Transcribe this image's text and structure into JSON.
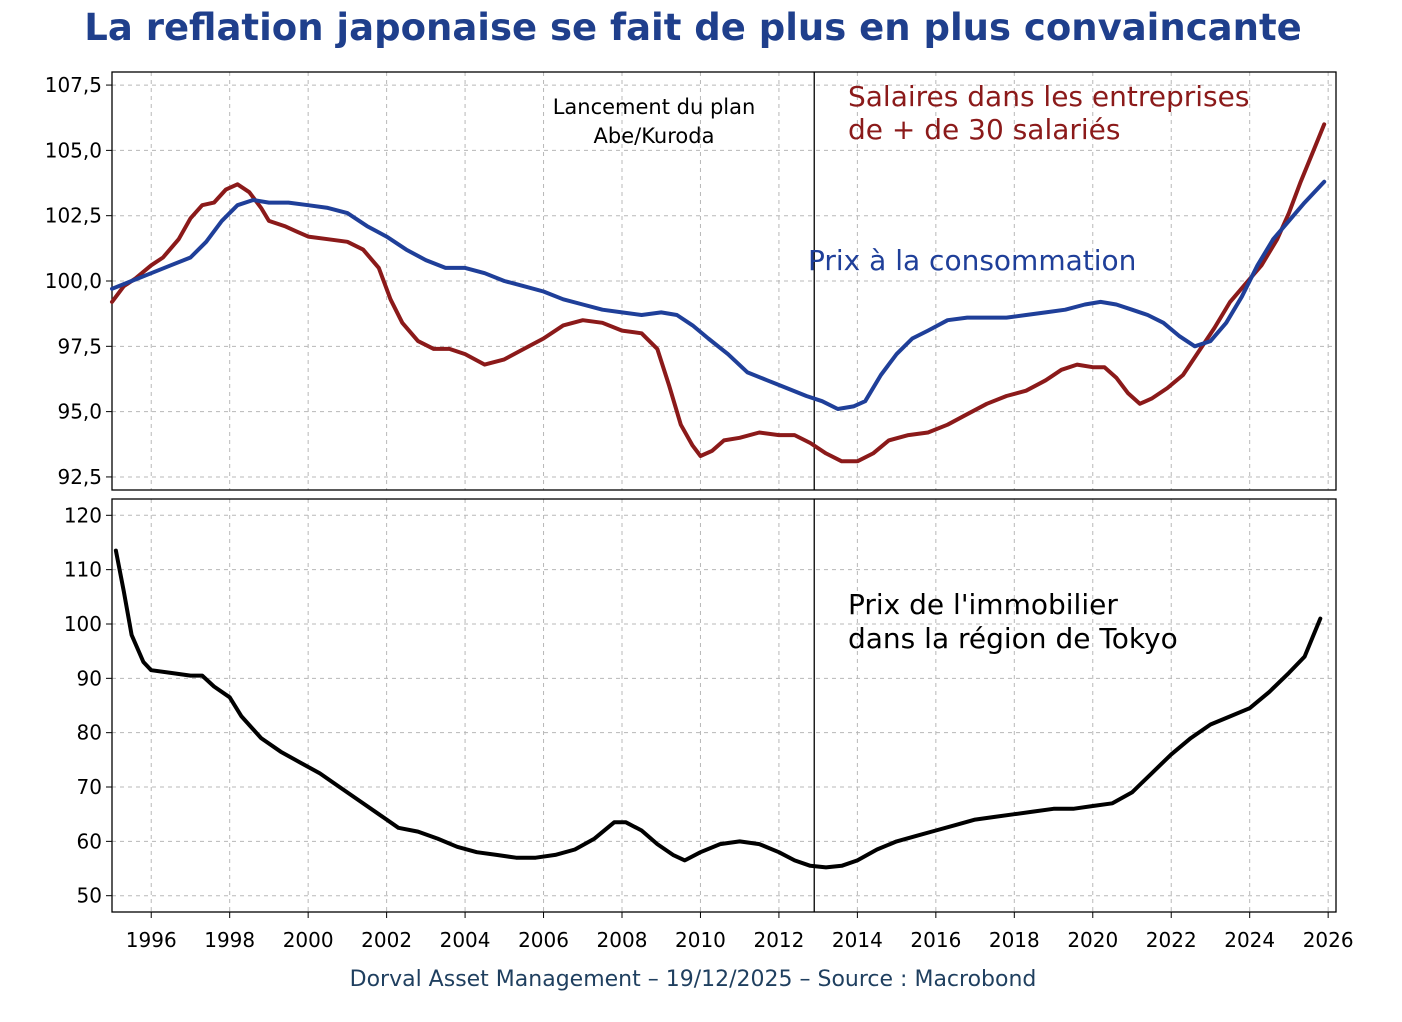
{
  "title": "La reflation japonaise se fait de plus en plus convaincante",
  "footer": "Dorval Asset Management – 19/12/2025  –   Source : Macrobond",
  "colors": {
    "title": "#1f3f8c",
    "wages": "#8b1a1a",
    "cpi": "#1f3f99",
    "housing": "#000000"
  },
  "chart_data": [
    {
      "type": "line",
      "panel": "top",
      "ylim": [
        92,
        108
      ],
      "xlim": [
        1995.0,
        2026.2
      ],
      "grid": true,
      "yticks": [
        92.5,
        95.0,
        97.5,
        100.0,
        102.5,
        105.0,
        107.5
      ],
      "ytick_labels": [
        "92,5",
        "95,0",
        "97,5",
        "100,0",
        "102,5",
        "105,0",
        "107,5"
      ],
      "annotations": [
        {
          "text_lines": [
            "Lancement du plan",
            "Abe/Kuroda"
          ],
          "x": 2012.9
        }
      ],
      "vline_x": 2012.9,
      "series": [
        {
          "name": "Salaires dans les entreprises de + de 30 salariés",
          "label_lines": [
            "Salaires dans les entreprises",
            "de + de 30 salariés"
          ],
          "color": "#8b1a1a",
          "points": [
            [
              1995.0,
              99.2
            ],
            [
              1995.3,
              99.8
            ],
            [
              1995.6,
              100.1
            ],
            [
              1996.0,
              100.6
            ],
            [
              1996.3,
              100.9
            ],
            [
              1996.7,
              101.6
            ],
            [
              1997.0,
              102.4
            ],
            [
              1997.3,
              102.9
            ],
            [
              1997.6,
              103.0
            ],
            [
              1997.9,
              103.5
            ],
            [
              1998.2,
              103.7
            ],
            [
              1998.5,
              103.4
            ],
            [
              1998.8,
              102.8
            ],
            [
              1999.0,
              102.3
            ],
            [
              1999.4,
              102.1
            ],
            [
              1999.7,
              101.9
            ],
            [
              2000.0,
              101.7
            ],
            [
              2000.5,
              101.6
            ],
            [
              2001.0,
              101.5
            ],
            [
              2001.4,
              101.2
            ],
            [
              2001.8,
              100.5
            ],
            [
              2002.1,
              99.3
            ],
            [
              2002.4,
              98.4
            ],
            [
              2002.8,
              97.7
            ],
            [
              2003.2,
              97.4
            ],
            [
              2003.6,
              97.4
            ],
            [
              2004.0,
              97.2
            ],
            [
              2004.5,
              96.8
            ],
            [
              2005.0,
              97.0
            ],
            [
              2005.5,
              97.4
            ],
            [
              2006.0,
              97.8
            ],
            [
              2006.5,
              98.3
            ],
            [
              2007.0,
              98.5
            ],
            [
              2007.5,
              98.4
            ],
            [
              2008.0,
              98.1
            ],
            [
              2008.5,
              98.0
            ],
            [
              2008.9,
              97.4
            ],
            [
              2009.2,
              96.0
            ],
            [
              2009.5,
              94.5
            ],
            [
              2009.8,
              93.7
            ],
            [
              2010.0,
              93.3
            ],
            [
              2010.3,
              93.5
            ],
            [
              2010.6,
              93.9
            ],
            [
              2011.0,
              94.0
            ],
            [
              2011.5,
              94.2
            ],
            [
              2012.0,
              94.1
            ],
            [
              2012.4,
              94.1
            ],
            [
              2012.8,
              93.8
            ],
            [
              2013.2,
              93.4
            ],
            [
              2013.6,
              93.1
            ],
            [
              2014.0,
              93.1
            ],
            [
              2014.4,
              93.4
            ],
            [
              2014.8,
              93.9
            ],
            [
              2015.3,
              94.1
            ],
            [
              2015.8,
              94.2
            ],
            [
              2016.3,
              94.5
            ],
            [
              2016.8,
              94.9
            ],
            [
              2017.3,
              95.3
            ],
            [
              2017.8,
              95.6
            ],
            [
              2018.3,
              95.8
            ],
            [
              2018.8,
              96.2
            ],
            [
              2019.2,
              96.6
            ],
            [
              2019.6,
              96.8
            ],
            [
              2020.0,
              96.7
            ],
            [
              2020.3,
              96.7
            ],
            [
              2020.6,
              96.3
            ],
            [
              2020.9,
              95.7
            ],
            [
              2021.2,
              95.3
            ],
            [
              2021.5,
              95.5
            ],
            [
              2021.9,
              95.9
            ],
            [
              2022.3,
              96.4
            ],
            [
              2022.7,
              97.3
            ],
            [
              2023.1,
              98.2
            ],
            [
              2023.5,
              99.2
            ],
            [
              2023.9,
              99.9
            ],
            [
              2024.3,
              100.6
            ],
            [
              2024.7,
              101.6
            ],
            [
              2025.0,
              102.6
            ],
            [
              2025.3,
              103.8
            ],
            [
              2025.6,
              104.9
            ],
            [
              2025.9,
              106.0
            ]
          ]
        },
        {
          "name": "Prix à la consommation",
          "label_lines": [
            "Prix à la consommation"
          ],
          "color": "#1f3f99",
          "points": [
            [
              1995.0,
              99.7
            ],
            [
              1995.5,
              100.0
            ],
            [
              1996.0,
              100.3
            ],
            [
              1996.5,
              100.6
            ],
            [
              1997.0,
              100.9
            ],
            [
              1997.4,
              101.5
            ],
            [
              1997.8,
              102.3
            ],
            [
              1998.2,
              102.9
            ],
            [
              1998.6,
              103.1
            ],
            [
              1999.0,
              103.0
            ],
            [
              1999.5,
              103.0
            ],
            [
              2000.0,
              102.9
            ],
            [
              2000.5,
              102.8
            ],
            [
              2001.0,
              102.6
            ],
            [
              2001.5,
              102.1
            ],
            [
              2002.0,
              101.7
            ],
            [
              2002.5,
              101.2
            ],
            [
              2003.0,
              100.8
            ],
            [
              2003.5,
              100.5
            ],
            [
              2004.0,
              100.5
            ],
            [
              2004.5,
              100.3
            ],
            [
              2005.0,
              100.0
            ],
            [
              2005.5,
              99.8
            ],
            [
              2006.0,
              99.6
            ],
            [
              2006.5,
              99.3
            ],
            [
              2007.0,
              99.1
            ],
            [
              2007.5,
              98.9
            ],
            [
              2008.0,
              98.8
            ],
            [
              2008.5,
              98.7
            ],
            [
              2009.0,
              98.8
            ],
            [
              2009.4,
              98.7
            ],
            [
              2009.8,
              98.3
            ],
            [
              2010.2,
              97.8
            ],
            [
              2010.7,
              97.2
            ],
            [
              2011.2,
              96.5
            ],
            [
              2011.7,
              96.2
            ],
            [
              2012.2,
              95.9
            ],
            [
              2012.7,
              95.6
            ],
            [
              2013.1,
              95.4
            ],
            [
              2013.5,
              95.1
            ],
            [
              2013.9,
              95.2
            ],
            [
              2014.2,
              95.4
            ],
            [
              2014.6,
              96.4
            ],
            [
              2015.0,
              97.2
            ],
            [
              2015.4,
              97.8
            ],
            [
              2015.8,
              98.1
            ],
            [
              2016.3,
              98.5
            ],
            [
              2016.8,
              98.6
            ],
            [
              2017.3,
              98.6
            ],
            [
              2017.8,
              98.6
            ],
            [
              2018.3,
              98.7
            ],
            [
              2018.8,
              98.8
            ],
            [
              2019.3,
              98.9
            ],
            [
              2019.8,
              99.1
            ],
            [
              2020.2,
              99.2
            ],
            [
              2020.6,
              99.1
            ],
            [
              2021.0,
              98.9
            ],
            [
              2021.4,
              98.7
            ],
            [
              2021.8,
              98.4
            ],
            [
              2022.2,
              97.9
            ],
            [
              2022.6,
              97.5
            ],
            [
              2023.0,
              97.7
            ],
            [
              2023.4,
              98.4
            ],
            [
              2023.8,
              99.4
            ],
            [
              2024.2,
              100.6
            ],
            [
              2024.6,
              101.6
            ],
            [
              2025.0,
              102.3
            ],
            [
              2025.4,
              103.0
            ],
            [
              2025.9,
              103.8
            ]
          ]
        }
      ]
    },
    {
      "type": "line",
      "panel": "bottom",
      "ylim": [
        47,
        123
      ],
      "xlim": [
        1995.0,
        2026.2
      ],
      "grid": true,
      "yticks": [
        50,
        60,
        70,
        80,
        90,
        100,
        110,
        120
      ],
      "ytick_labels": [
        "50",
        "60",
        "70",
        "80",
        "90",
        "100",
        "110",
        "120"
      ],
      "xticks": [
        1996,
        1998,
        2000,
        2002,
        2004,
        2006,
        2008,
        2010,
        2012,
        2014,
        2016,
        2018,
        2020,
        2022,
        2024,
        2026
      ],
      "xtick_labels": [
        "1996",
        "1998",
        "2000",
        "2002",
        "2004",
        "2006",
        "2008",
        "2010",
        "2012",
        "2014",
        "2016",
        "2018",
        "2020",
        "2022",
        "2024",
        "2026"
      ],
      "vline_x": 2012.9,
      "series": [
        {
          "name": "Prix de l'immobilier dans la région de Tokyo",
          "label_lines": [
            "Prix de l'immobilier",
            "dans la région de Tokyo"
          ],
          "color": "#000000",
          "points": [
            [
              1995.1,
              113.5
            ],
            [
              1995.3,
              106.0
            ],
            [
              1995.5,
              98.0
            ],
            [
              1995.8,
              93.0
            ],
            [
              1996.0,
              91.5
            ],
            [
              1996.5,
              91.0
            ],
            [
              1997.0,
              90.5
            ],
            [
              1997.3,
              90.5
            ],
            [
              1997.6,
              88.5
            ],
            [
              1998.0,
              86.5
            ],
            [
              1998.3,
              83.0
            ],
            [
              1998.8,
              79.0
            ],
            [
              1999.3,
              76.5
            ],
            [
              1999.8,
              74.5
            ],
            [
              2000.3,
              72.5
            ],
            [
              2000.8,
              70.0
            ],
            [
              2001.3,
              67.5
            ],
            [
              2001.8,
              65.0
            ],
            [
              2002.3,
              62.5
            ],
            [
              2002.8,
              61.8
            ],
            [
              2003.3,
              60.5
            ],
            [
              2003.8,
              59.0
            ],
            [
              2004.3,
              58.0
            ],
            [
              2004.8,
              57.5
            ],
            [
              2005.3,
              57.0
            ],
            [
              2005.8,
              57.0
            ],
            [
              2006.3,
              57.5
            ],
            [
              2006.8,
              58.5
            ],
            [
              2007.3,
              60.5
            ],
            [
              2007.8,
              63.5
            ],
            [
              2008.1,
              63.5
            ],
            [
              2008.5,
              62.0
            ],
            [
              2008.9,
              59.5
            ],
            [
              2009.3,
              57.5
            ],
            [
              2009.6,
              56.5
            ],
            [
              2010.0,
              58.0
            ],
            [
              2010.5,
              59.5
            ],
            [
              2011.0,
              60.0
            ],
            [
              2011.5,
              59.5
            ],
            [
              2012.0,
              58.0
            ],
            [
              2012.4,
              56.5
            ],
            [
              2012.8,
              55.5
            ],
            [
              2013.2,
              55.2
            ],
            [
              2013.6,
              55.5
            ],
            [
              2014.0,
              56.5
            ],
            [
              2014.5,
              58.5
            ],
            [
              2015.0,
              60.0
            ],
            [
              2015.5,
              61.0
            ],
            [
              2016.0,
              62.0
            ],
            [
              2016.5,
              63.0
            ],
            [
              2017.0,
              64.0
            ],
            [
              2017.5,
              64.5
            ],
            [
              2018.0,
              65.0
            ],
            [
              2018.5,
              65.5
            ],
            [
              2019.0,
              66.0
            ],
            [
              2019.5,
              66.0
            ],
            [
              2020.0,
              66.5
            ],
            [
              2020.5,
              67.0
            ],
            [
              2021.0,
              69.0
            ],
            [
              2021.5,
              72.5
            ],
            [
              2022.0,
              76.0
            ],
            [
              2022.5,
              79.0
            ],
            [
              2023.0,
              81.5
            ],
            [
              2023.5,
              83.0
            ],
            [
              2024.0,
              84.5
            ],
            [
              2024.5,
              87.5
            ],
            [
              2025.0,
              91.0
            ],
            [
              2025.4,
              94.0
            ],
            [
              2025.8,
              101.0
            ]
          ]
        }
      ]
    }
  ]
}
